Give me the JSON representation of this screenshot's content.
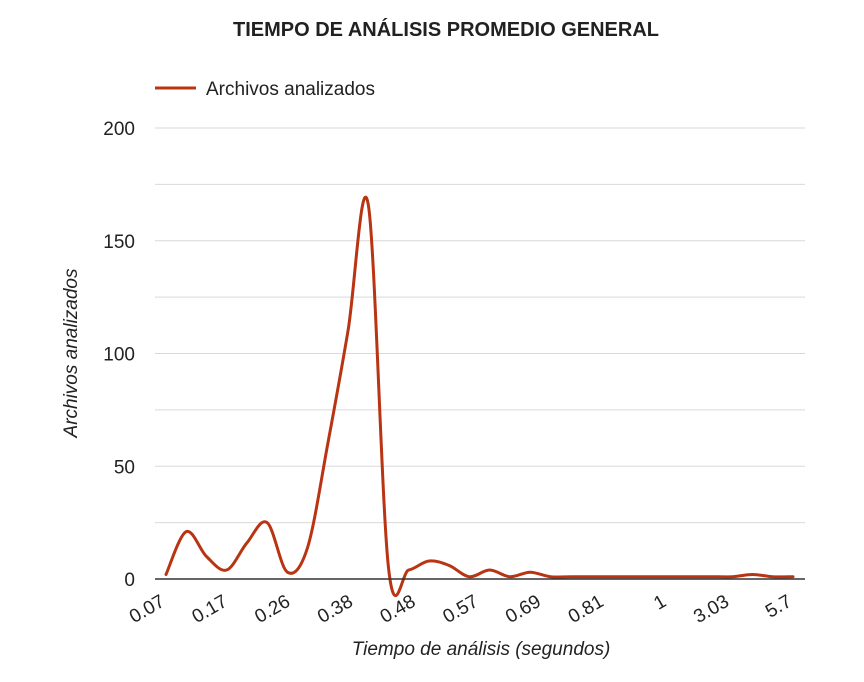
{
  "chart_data": {
    "type": "line",
    "title": "TIEMPO DE ANÁLISIS PROMEDIO GENERAL",
    "xlabel": "Tiempo de análisis (segundos)",
    "ylabel": "Archivos analizados",
    "ylim": [
      0,
      200
    ],
    "y_ticks": [
      "0",
      "50",
      "100",
      "150",
      "200"
    ],
    "x_tick_labels": [
      "0.07",
      "0.17",
      "0.26",
      "0.38",
      "0.48",
      "0.57",
      "0.69",
      "0.81",
      "1",
      "3.03",
      "5.7"
    ],
    "grid": true,
    "legend": "top-left",
    "smooth": true,
    "series": [
      {
        "name": "Archivos analizados",
        "color": "#b83412",
        "values": [
          2,
          21,
          10,
          4,
          16,
          25,
          3,
          14,
          60,
          110,
          166,
          5,
          4,
          8,
          6,
          1,
          4,
          1,
          3,
          1,
          1,
          1,
          1,
          1,
          1,
          1,
          1,
          1,
          1,
          2,
          1,
          1
        ]
      }
    ]
  }
}
